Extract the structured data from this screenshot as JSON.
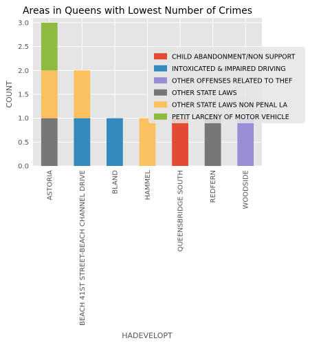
{
  "chart_data": {
    "type": "bar",
    "stacked": true,
    "title": "Areas in Queens with Lowest Number of Crimes",
    "xlabel": "HADEVELOPT",
    "ylabel": "COUNT",
    "categories": [
      "ASTORIA",
      "BEACH 41ST STREET-BEACH CHANNEL DRIVE",
      "BLAND",
      "HAMMEL",
      "QUEENSBRIDGE SOUTH",
      "REDFERN",
      "WOODSIDE"
    ],
    "ylim": [
      0,
      3.1
    ],
    "yticks": [
      "0.0",
      "0.5",
      "1.0",
      "1.5",
      "2.0",
      "2.5",
      "3.0"
    ],
    "grid": true,
    "legend_position": "right",
    "series": [
      {
        "name": "CHILD ABANDONMENT/NON SUPPORT",
        "color": "#E24A33",
        "values": [
          0,
          0,
          0,
          0,
          1,
          0,
          0
        ]
      },
      {
        "name": "INTOXICATED & IMPAIRED DRIVING",
        "color": "#348ABD",
        "values": [
          0,
          1,
          1,
          0,
          0,
          0,
          0
        ]
      },
      {
        "name": "OTHER OFFENSES RELATED TO THEF",
        "color": "#988ED5",
        "values": [
          0,
          0,
          0,
          0,
          0,
          0,
          1
        ]
      },
      {
        "name": "OTHER STATE LAWS",
        "color": "#777777",
        "values": [
          1,
          0,
          0,
          0,
          0,
          1,
          0
        ]
      },
      {
        "name": "OTHER STATE LAWS NON PENAL LA",
        "color": "#FBC15E",
        "values": [
          1,
          1,
          0,
          1,
          0,
          0,
          0
        ]
      },
      {
        "name": "PETIT LARCENY OF MOTOR VEHICLE",
        "color": "#8EBA42",
        "values": [
          1,
          0,
          0,
          0,
          0,
          0,
          0
        ]
      }
    ],
    "stack_order": [
      3,
      1,
      0,
      2,
      4,
      5
    ]
  }
}
